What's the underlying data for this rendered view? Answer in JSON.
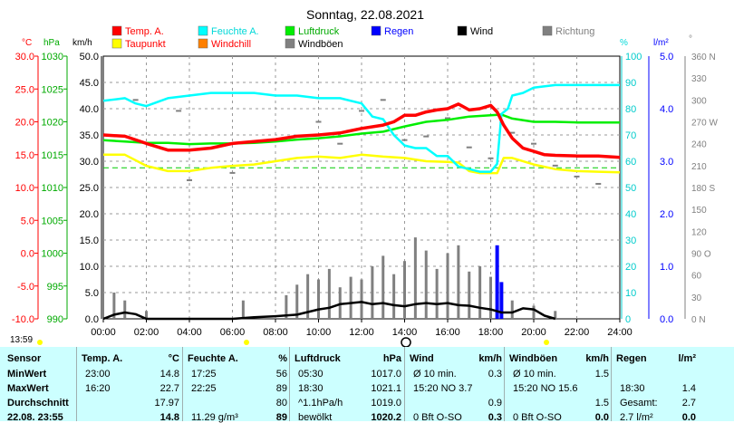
{
  "title": "Sonntag, 22.08.2021",
  "time_readout": "13:59",
  "legend": [
    {
      "label": "Temp. A.",
      "color": "#ff0000",
      "text_color": "#ff0000"
    },
    {
      "label": "Feuchte A.",
      "color": "#00ffff",
      "text_color": "#00d8d8"
    },
    {
      "label": "Luftdruck",
      "color": "#00ee00",
      "text_color": "#00aa00"
    },
    {
      "label": "Regen",
      "color": "#0000ff",
      "text_color": "#0000ff"
    },
    {
      "label": "Wind",
      "color": "#000000",
      "text_color": "#000000"
    },
    {
      "label": "Richtung",
      "color": "#808080",
      "text_color": "#808080"
    },
    {
      "label": "Taupunkt",
      "color": "#ffff00",
      "text_color": "#ff0000"
    },
    {
      "label": "Windchill",
      "color": "#ff8000",
      "text_color": "#ff0000"
    },
    {
      "label": "Windböen",
      "color": "#808080",
      "text_color": "#000000"
    }
  ],
  "axes": {
    "units": {
      "temp": "°C",
      "press": "hPa",
      "wind": "km/h",
      "hum": "%",
      "rain": "l/m²",
      "dir": "°"
    },
    "temp_ticks": [
      "30.0",
      "25.0",
      "20.0",
      "15.0",
      "10.0",
      "5.0",
      "0.0",
      "-5.0",
      "-10.0"
    ],
    "press_ticks": [
      "1030",
      "1025",
      "1020",
      "1015",
      "1010",
      "1005",
      "1000",
      "995",
      "990"
    ],
    "wind_ticks": [
      "50.0",
      "45.0",
      "40.0",
      "35.0",
      "30.0",
      "25.0",
      "20.0",
      "15.0",
      "10.0",
      "5.0",
      "0.0"
    ],
    "hum_ticks": [
      "100",
      "90",
      "80",
      "70",
      "60",
      "50",
      "40",
      "30",
      "20",
      "10",
      "0"
    ],
    "rain_ticks": [
      "5.0",
      "4.0",
      "3.0",
      "2.0",
      "1.0",
      "0.0"
    ],
    "dir_ticks": [
      "360 N",
      "330",
      "300",
      "270 W",
      "240",
      "210",
      "180 S",
      "150",
      "120",
      "90 O",
      "60",
      "30",
      "0 N"
    ],
    "x_ticks": [
      "00:00",
      "02:00",
      "04:00",
      "06:00",
      "08:00",
      "10:00",
      "12:00",
      "14:00",
      "16:00",
      "18:00",
      "20:00",
      "22:00",
      "24:00"
    ]
  },
  "chart_data": {
    "type": "line",
    "title": "Sonntag, 22.08.2021",
    "x_unit": "hours",
    "x_range": [
      0,
      24
    ],
    "grid": true,
    "series": [
      {
        "name": "Temp. A.",
        "axis": "temp °C",
        "color": "#ff0000",
        "x": [
          0,
          1,
          2,
          3,
          4,
          5,
          6,
          7,
          8,
          9,
          10,
          11,
          12,
          13,
          13.5,
          14,
          14.5,
          15,
          15.5,
          16,
          16.5,
          17,
          17.5,
          18,
          18.3,
          18.6,
          19,
          19.5,
          20,
          20.5,
          21,
          22,
          23,
          24
        ],
        "y": [
          18.0,
          17.8,
          16.7,
          15.7,
          15.7,
          16.0,
          16.7,
          17.0,
          17.3,
          17.8,
          18.0,
          18.3,
          19.0,
          19.5,
          20.0,
          21.0,
          21.0,
          21.5,
          21.8,
          22.0,
          22.7,
          21.8,
          22.0,
          22.5,
          21.5,
          19.5,
          17.5,
          16.0,
          15.5,
          15.0,
          14.9,
          14.8,
          14.8,
          14.6
        ]
      },
      {
        "name": "Taupunkt",
        "axis": "temp °C",
        "color": "#ffff00",
        "x": [
          0,
          1,
          2,
          3,
          4,
          5,
          6,
          7,
          8,
          9,
          10,
          11,
          12,
          13,
          14,
          15,
          16,
          16.5,
          17,
          17.5,
          18,
          18.3,
          18.6,
          19,
          20,
          21,
          22,
          23,
          24
        ],
        "y": [
          15.0,
          15.0,
          13.3,
          12.5,
          12.5,
          13.0,
          13.3,
          13.5,
          14.0,
          14.5,
          14.7,
          14.5,
          15.0,
          14.7,
          14.5,
          14.0,
          13.9,
          13.8,
          12.5,
          12.2,
          12.2,
          12.2,
          14.5,
          14.5,
          13.5,
          12.8,
          12.5,
          12.4,
          12.3
        ]
      },
      {
        "name": "Luftdruck",
        "axis": "press hPa",
        "color": "#00ee00",
        "x": [
          0,
          1,
          2,
          3,
          4,
          5,
          6,
          7,
          8,
          9,
          10,
          11,
          12,
          13,
          14,
          15,
          16,
          17,
          18,
          18.5,
          19,
          20,
          21,
          22,
          23,
          24
        ],
        "y": [
          1017.2,
          1017.0,
          1016.8,
          1016.8,
          1016.6,
          1016.7,
          1016.7,
          1016.8,
          1017.0,
          1017.3,
          1017.5,
          1017.8,
          1018.2,
          1018.5,
          1019.3,
          1020.0,
          1020.3,
          1020.8,
          1021.0,
          1021.1,
          1020.5,
          1020.0,
          1020.0,
          1019.9,
          1019.9,
          1019.9
        ]
      },
      {
        "name": "Feuchte A.",
        "axis": "hum %",
        "color": "#00ffff",
        "x": [
          0,
          1,
          1.5,
          2,
          3,
          4,
          5,
          6,
          7,
          8,
          9,
          10,
          11,
          12,
          12.5,
          13,
          13.5,
          14,
          14.5,
          15,
          15.5,
          16,
          16.5,
          17,
          17.5,
          18,
          18.3,
          18.5,
          18.8,
          19,
          19.5,
          20,
          21,
          22,
          23,
          24
        ],
        "y": [
          83,
          84,
          82,
          81,
          84,
          85,
          86,
          86,
          86,
          85,
          85,
          84,
          84,
          82,
          77,
          76,
          70,
          66,
          65,
          65,
          62,
          62,
          58,
          57,
          56,
          56,
          59,
          78,
          80,
          85,
          86,
          88,
          89,
          89,
          89,
          89
        ]
      },
      {
        "name": "Regen",
        "axis": "rain l/m²",
        "color": "#0000ff",
        "x": [
          18.3,
          18.5
        ],
        "y": [
          1.4,
          0.7
        ]
      },
      {
        "name": "Wind",
        "axis": "wind km/h",
        "color": "#000000",
        "x": [
          0,
          0.5,
          1,
          1.5,
          2,
          3,
          4,
          5,
          6,
          7,
          8,
          9,
          10,
          10.5,
          11,
          12,
          12.5,
          13,
          13.5,
          14,
          14.5,
          15,
          15.5,
          16,
          16.5,
          17,
          17.5,
          18,
          18.5,
          19,
          19.5,
          20,
          20.5,
          21
        ],
        "y": [
          0,
          0.8,
          1.2,
          0.9,
          0,
          0,
          0,
          0,
          0,
          0.3,
          0.5,
          0.8,
          1.8,
          2.1,
          2.8,
          3.2,
          2.8,
          3.0,
          2.6,
          2.4,
          2.8,
          3.0,
          2.8,
          3.0,
          2.6,
          2.5,
          2.1,
          1.8,
          1.2,
          1.2,
          2.0,
          1.8,
          0.6,
          0
        ]
      },
      {
        "name": "Windböen",
        "axis": "wind km/h",
        "color": "#808080",
        "x": [
          0.5,
          1.0,
          2.0,
          6.5,
          8.5,
          9.0,
          9.5,
          10.0,
          10.5,
          11.0,
          11.5,
          12.0,
          12.5,
          13.0,
          13.5,
          14.0,
          14.5,
          15.0,
          15.5,
          16.0,
          16.5,
          17.0,
          17.5,
          18.0,
          18.5,
          19.0,
          20.0,
          21.0
        ],
        "y": [
          5.0,
          3.5,
          1.5,
          3.5,
          4.5,
          6.5,
          8.5,
          7.5,
          9.5,
          6.0,
          8.0,
          7.5,
          10.0,
          12.0,
          8.5,
          11.0,
          15.5,
          13.0,
          9.5,
          12.5,
          14.0,
          9.0,
          10.0,
          8.0,
          5.0,
          3.5,
          2.5,
          1.5
        ]
      },
      {
        "name": "Richtung",
        "axis": "dir °",
        "color": "#808080",
        "x": [
          1.5,
          3.5,
          4.0,
          6.0,
          9.0,
          10.0,
          11.0,
          12.0,
          13.0,
          14.0,
          15.0,
          16.0,
          17.0,
          18.0,
          19.0,
          20.0,
          21.0,
          22.0,
          23.0
        ],
        "y": [
          300,
          285,
          190,
          200,
          250,
          270,
          240,
          285,
          300,
          245,
          250,
          275,
          235,
          220,
          255,
          240,
          210,
          195,
          185
        ]
      }
    ],
    "reference_line": {
      "axis": "temp °C",
      "value": 13.0,
      "color": "#00cc00",
      "style": "dashed"
    }
  },
  "stats": {
    "row_labels": [
      "Sensor",
      "MinWert",
      "MaxWert",
      "Durchschnitt",
      "22.08. 23:55"
    ],
    "columns": [
      {
        "title": "Temp. A.",
        "unit": "°C",
        "rows": [
          [
            "23:00",
            "14.8"
          ],
          [
            "16:20",
            "22.7"
          ],
          [
            "",
            "17.97"
          ],
          [
            "",
            "14.8"
          ]
        ]
      },
      {
        "title": "Feuchte A.",
        "unit": "%",
        "rows": [
          [
            "17:25",
            "56"
          ],
          [
            "22:25",
            "89"
          ],
          [
            "",
            "80"
          ],
          [
            "11.29 g/m³",
            "89"
          ]
        ]
      },
      {
        "title": "Luftdruck",
        "unit": "hPa",
        "rows": [
          [
            "05:30",
            "1017.0"
          ],
          [
            "18:30",
            "1021.1"
          ],
          [
            "^1.1hPa/h",
            "1019.0"
          ],
          [
            "bewölkt",
            "1020.2"
          ]
        ]
      },
      {
        "title": "Wind",
        "unit": "km/h",
        "rows": [
          [
            "Ø 10 min.",
            "0.3"
          ],
          [
            "15:20   NO 3.7",
            ""
          ],
          [
            "",
            "0.9"
          ],
          [
            "0 Bft O-SO",
            "0.3"
          ]
        ]
      },
      {
        "title": "Windböen",
        "unit": "km/h",
        "rows": [
          [
            "Ø 10 min.",
            "1.5"
          ],
          [
            "15:20   NO 15.6",
            ""
          ],
          [
            "",
            "1.5"
          ],
          [
            "0 Bft O-SO",
            "0.0"
          ]
        ]
      },
      {
        "title": "Regen",
        "unit": "l/m²",
        "rows": [
          [
            "",
            ""
          ],
          [
            "18:30",
            "1.4"
          ],
          [
            "Gesamt:",
            "2.7"
          ],
          [
            "2.7 l/m²",
            "0.0"
          ]
        ]
      }
    ]
  }
}
